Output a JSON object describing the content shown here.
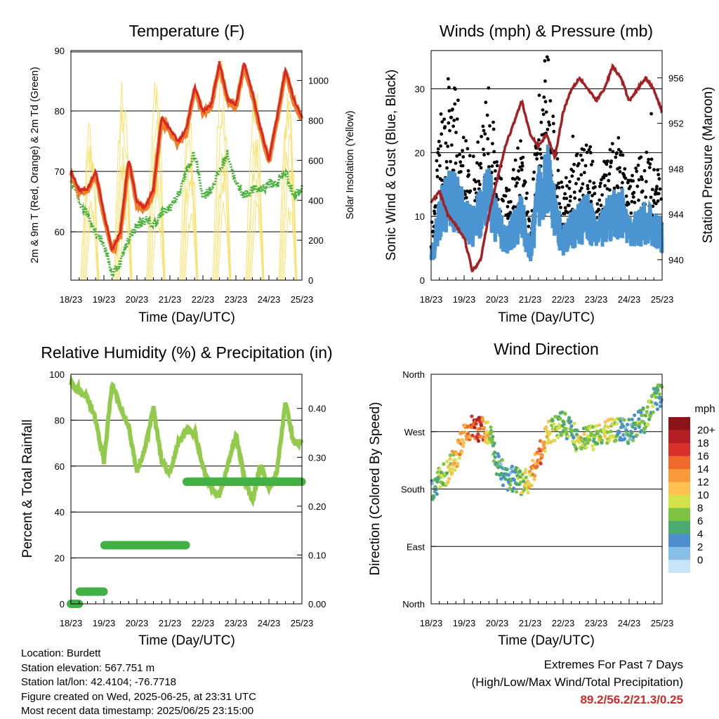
{
  "panels": {
    "temperature": {
      "title": "Temperature (F)",
      "ylabel_left": "2m & 9m T (Red, Orange) & 2m Td (Green)",
      "ylabel_right": "Solar Insolation (Yellow)",
      "xlabel": "Time (Day/UTC)",
      "xticks": [
        "18/23",
        "19/23",
        "20/23",
        "21/23",
        "22/23",
        "23/23",
        "24/23",
        "25/23"
      ],
      "yticks_left": [
        "60",
        "70",
        "80",
        "90"
      ],
      "yticks_right": [
        "0",
        "200",
        "400",
        "600",
        "800",
        "1000"
      ]
    },
    "winds": {
      "title": "Winds (mph) & Pressure (mb)",
      "ylabel_left": "Sonic Wind & Gust (Blue, Black)",
      "ylabel_right": "Station Pressure (Maroon)",
      "xlabel": "Time (Day/UTC)",
      "xticks": [
        "18/23",
        "19/23",
        "20/23",
        "21/23",
        "22/23",
        "23/23",
        "24/23",
        "25/23"
      ],
      "yticks_left": [
        "0",
        "10",
        "20",
        "30"
      ],
      "yticks_right": [
        "940",
        "944",
        "948",
        "952",
        "956"
      ]
    },
    "humidity": {
      "title": "Relative Humidity (%) & Precipitation (in)",
      "ylabel_left": "Percent & Total Rainfall",
      "xlabel": "Time (Day/UTC)",
      "xticks": [
        "18/23",
        "19/23",
        "20/23",
        "21/23",
        "22/23",
        "23/23",
        "24/23",
        "25/23"
      ],
      "yticks_left": [
        "0",
        "20",
        "40",
        "60",
        "80",
        "100"
      ],
      "yticks_right": [
        "0.00",
        "0.10",
        "0.20",
        "0.30",
        "0.40"
      ]
    },
    "direction": {
      "title": "Wind Direction",
      "ylabel_left": "Direction (Colored By Speed)",
      "xlabel": "Time (Day/UTC)",
      "xticks": [
        "18/23",
        "19/23",
        "20/23",
        "21/23",
        "22/23",
        "23/23",
        "24/23",
        "25/23"
      ],
      "yticks_left": [
        "North",
        "East",
        "South",
        "West",
        "North"
      ],
      "legend_title": "mph",
      "legend_labels": [
        "0",
        "2",
        "4",
        "6",
        "8",
        "10",
        "12",
        "14",
        "16",
        "18",
        "20+"
      ],
      "legend_colors": [
        "#c6e6f7",
        "#86c0e6",
        "#4d8fcc",
        "#4daa6e",
        "#7dc242",
        "#d4e24a",
        "#fec04e",
        "#f89a3a",
        "#ee6a2a",
        "#d8312b",
        "#b41f24",
        "#8c1418"
      ]
    }
  },
  "colors": {
    "temp2m": "#d62828",
    "temp9m": "#f07e26",
    "dewpoint": "#4bb13f",
    "solar": "#f8e16c",
    "wind": "#4a94d1",
    "gust": "#000000",
    "pressure": "#a32025",
    "rh": "#92cb4c",
    "precip": "#43b045"
  },
  "chart_data": [
    {
      "type": "line",
      "title": "Temperature (F)",
      "xlabel": "Time (Day/UTC)",
      "ylabel": "2m & 9m T (Red, Orange) & 2m Td (Green)",
      "y2label": "Solar Insolation (Yellow)",
      "x": [
        0,
        0.25,
        0.5,
        0.75,
        1,
        1.25,
        1.5,
        1.75,
        2,
        2.25,
        2.5,
        2.75,
        3,
        3.25,
        3.5,
        3.75,
        4,
        4.25,
        4.5,
        4.75,
        5,
        5.25,
        5.5,
        5.75,
        6,
        6.25,
        6.5,
        6.75,
        7
      ],
      "ylim": [
        52,
        90
      ],
      "y2lim": [
        0,
        1150
      ],
      "series": [
        {
          "name": "2m T",
          "axis": "left",
          "values": [
            70,
            67,
            67,
            70,
            63,
            57,
            60,
            72,
            65,
            64,
            67,
            79,
            77,
            75,
            77,
            84,
            80,
            81,
            88,
            82,
            81,
            88,
            83,
            77,
            72,
            79,
            87,
            82,
            79
          ]
        },
        {
          "name": "2m Td",
          "axis": "left",
          "values": [
            69,
            65,
            63,
            60,
            58,
            53,
            55,
            59,
            61,
            62,
            61,
            63,
            64,
            66,
            70,
            73,
            66,
            67,
            70,
            73,
            68,
            66,
            67,
            67,
            68,
            68,
            70,
            66,
            67
          ]
        },
        {
          "name": "Solar Insolation",
          "axis": "right",
          "values": [
            0,
            650,
            950,
            120,
            0,
            620,
            1100,
            80,
            0,
            700,
            1050,
            120,
            0,
            820,
            1000,
            150,
            0,
            900,
            1100,
            120,
            0,
            850,
            1050,
            100,
            0,
            800,
            1120,
            150,
            0
          ]
        }
      ]
    },
    {
      "type": "line",
      "title": "Winds (mph) & Pressure (mb)",
      "xlabel": "Time (Day/UTC)",
      "ylabel": "Sonic Wind & Gust (Blue, Black)",
      "y2label": "Station Pressure (Maroon)",
      "x": [
        0,
        0.25,
        0.5,
        0.75,
        1,
        1.25,
        1.5,
        1.75,
        2,
        2.25,
        2.5,
        2.75,
        3,
        3.25,
        3.5,
        3.75,
        4,
        4.25,
        4.5,
        4.75,
        5,
        5.25,
        5.5,
        5.75,
        6,
        6.25,
        6.5,
        6.75,
        7
      ],
      "ylim": [
        0,
        36
      ],
      "y2lim": [
        938.2,
        958.4
      ],
      "series": [
        {
          "name": "Sonic Wind",
          "axis": "left",
          "values": [
            3,
            10,
            13,
            12,
            10,
            8,
            11,
            13,
            9,
            6,
            8,
            10,
            4,
            13,
            17,
            10,
            6,
            8,
            9,
            10,
            7,
            9,
            10,
            11,
            7,
            8,
            9,
            8,
            7
          ]
        },
        {
          "name": "Gust",
          "axis": "left",
          "values": [
            5,
            17,
            22,
            21,
            16,
            13,
            17,
            21,
            14,
            10,
            13,
            16,
            6,
            20,
            27,
            16,
            10,
            13,
            14,
            16,
            11,
            14,
            15,
            16,
            11,
            13,
            14,
            13,
            11
          ]
        },
        {
          "name": "Station Pressure",
          "axis": "right",
          "values": [
            945,
            946,
            944,
            943,
            942,
            939,
            940,
            944,
            947,
            950,
            952,
            954,
            951,
            950,
            951,
            949,
            953,
            955,
            956,
            955,
            954,
            955,
            957,
            956,
            954,
            955,
            956,
            955,
            953
          ]
        }
      ]
    },
    {
      "type": "line",
      "title": "Relative Humidity (%) & Precipitation (in)",
      "xlabel": "Time (Day/UTC)",
      "ylabel": "Percent & Total Rainfall",
      "x": [
        0,
        0.25,
        0.5,
        0.75,
        1,
        1.25,
        1.5,
        1.75,
        2,
        2.25,
        2.5,
        2.75,
        3,
        3.25,
        3.5,
        3.75,
        4,
        4.25,
        4.5,
        4.75,
        5,
        5.25,
        5.5,
        5.75,
        6,
        6.25,
        6.5,
        6.75,
        7
      ],
      "ylim": [
        0,
        100
      ],
      "y2lim": [
        0,
        0.47
      ],
      "series": [
        {
          "name": "Relative Humidity",
          "axis": "left",
          "values": [
            96,
            93,
            90,
            80,
            62,
            96,
            85,
            77,
            58,
            68,
            85,
            62,
            57,
            70,
            75,
            75,
            60,
            50,
            47,
            60,
            74,
            55,
            45,
            60,
            50,
            58,
            88,
            70,
            70
          ]
        },
        {
          "name": "Precipitation",
          "axis": "right",
          "values": [
            0,
            0.025,
            0.025,
            0.025,
            0.12,
            0.12,
            0.12,
            0.12,
            0.12,
            0.12,
            0.12,
            0.12,
            0.12,
            0.12,
            0.25,
            0.25,
            0.25,
            0.25,
            0.25,
            0.25,
            0.25,
            0.25,
            0.25,
            0.25,
            0.25,
            0.25,
            0.25,
            0.25,
            0.25
          ]
        }
      ]
    },
    {
      "type": "scatter",
      "title": "Wind Direction",
      "xlabel": "Time (Day/UTC)",
      "ylabel": "Direction (Colored By Speed)",
      "x": [
        0,
        0.25,
        0.5,
        0.75,
        1,
        1.25,
        1.5,
        1.75,
        2,
        2.25,
        2.5,
        2.75,
        3,
        3.25,
        3.5,
        3.75,
        4,
        4.25,
        4.5,
        4.75,
        5,
        5.25,
        5.5,
        5.75,
        6,
        6.25,
        6.5,
        6.75,
        7
      ],
      "ylim": [
        0,
        360
      ],
      "y": [
        180,
        195,
        205,
        230,
        265,
        275,
        275,
        270,
        220,
        200,
        195,
        190,
        195,
        230,
        265,
        275,
        285,
        270,
        250,
        265,
        260,
        265,
        275,
        270,
        270,
        280,
        290,
        320,
        330
      ],
      "speed": [
        4,
        8,
        10,
        12,
        14,
        16,
        18,
        10,
        6,
        4,
        6,
        8,
        12,
        16,
        12,
        8,
        8,
        6,
        10,
        8,
        8,
        10,
        10,
        6,
        4,
        6,
        8,
        6,
        6
      ]
    }
  ],
  "footer": {
    "location": "Location: Burdett",
    "elevation": "Station elevation: 567.751 m",
    "latlon": "Station lat/lon: 42.4104; -76.7718",
    "created": "Figure created on Wed, 2025-06-25, at 23:31 UTC",
    "recent": "Most recent data timestamp: 2025/06/25 23:15:00",
    "extremes_title": "Extremes For Past 7 Days",
    "extremes_sub": "(High/Low/Max Wind/Total Precipitation)",
    "extremes_values": "89.2/56.2/21.3/0.25"
  }
}
